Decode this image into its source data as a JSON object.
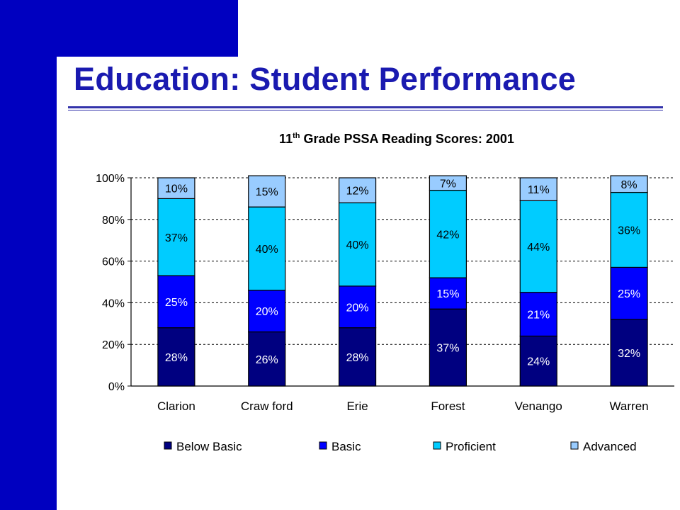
{
  "slide": {
    "title": "Education:  Student Performance"
  },
  "chart_data": {
    "type": "bar",
    "stacked": true,
    "title_main": "11",
    "title_sup": "th",
    "title_rest": " Grade PSSA Reading Scores: 2001",
    "categories": [
      "Clarion",
      "Craw ford",
      "Erie",
      "Forest",
      "Venango",
      "Warren"
    ],
    "series": [
      {
        "name": "Below  Basic",
        "color": "#000080",
        "values": [
          28,
          26,
          28,
          37,
          24,
          32
        ],
        "labels": [
          "28%",
          "26%",
          "28%",
          "37%",
          "24%",
          "32%"
        ],
        "label_color": "#ffffff"
      },
      {
        "name": "Basic",
        "color": "#0000ff",
        "values": [
          25,
          20,
          20,
          15,
          21,
          25
        ],
        "labels": [
          "25%",
          "20%",
          "20%",
          "15%",
          "21%",
          "25%"
        ],
        "label_color": "#ffffff"
      },
      {
        "name": "Proficient",
        "color": "#00ccff",
        "values": [
          37,
          40,
          40,
          42,
          44,
          36
        ],
        "labels": [
          "37%",
          "40%",
          "40%",
          "42%",
          "44%",
          "36%"
        ],
        "label_color": "#000000"
      },
      {
        "name": "Advanced",
        "color": "#99ccff",
        "values": [
          10,
          15,
          12,
          7,
          11,
          8
        ],
        "labels": [
          "10%",
          "15%",
          "12%",
          "7%",
          "11%",
          "8%"
        ],
        "label_color": "#000000"
      }
    ],
    "y_ticks": [
      "0%",
      "20%",
      "40%",
      "60%",
      "80%",
      "100%"
    ],
    "ylim": [
      0,
      100
    ],
    "grid": true,
    "legend_position": "bottom"
  }
}
